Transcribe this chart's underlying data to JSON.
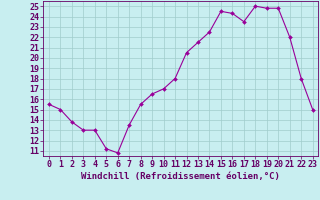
{
  "x": [
    0,
    1,
    2,
    3,
    4,
    5,
    6,
    7,
    8,
    9,
    10,
    11,
    12,
    13,
    14,
    15,
    16,
    17,
    18,
    19,
    20,
    21,
    22,
    23
  ],
  "y": [
    15.5,
    15.0,
    13.8,
    13.0,
    13.0,
    11.2,
    10.8,
    13.5,
    15.5,
    16.5,
    17.0,
    18.0,
    20.5,
    21.5,
    22.5,
    24.5,
    24.3,
    23.5,
    25.0,
    24.8,
    24.8,
    22.0,
    18.0,
    15.0
  ],
  "line_color": "#990099",
  "marker": "D",
  "marker_size": 2.0,
  "bg_color": "#c8eef0",
  "grid_color": "#a0cccc",
  "xlabel": "Windchill (Refroidissement éolien,°C)",
  "ylabel_ticks": [
    11,
    12,
    13,
    14,
    15,
    16,
    17,
    18,
    19,
    20,
    21,
    22,
    23,
    24,
    25
  ],
  "xlim": [
    -0.5,
    23.5
  ],
  "ylim": [
    10.5,
    25.5
  ],
  "title_color": "#660066",
  "xlabel_fontsize": 6.5,
  "tick_fontsize": 6.0
}
